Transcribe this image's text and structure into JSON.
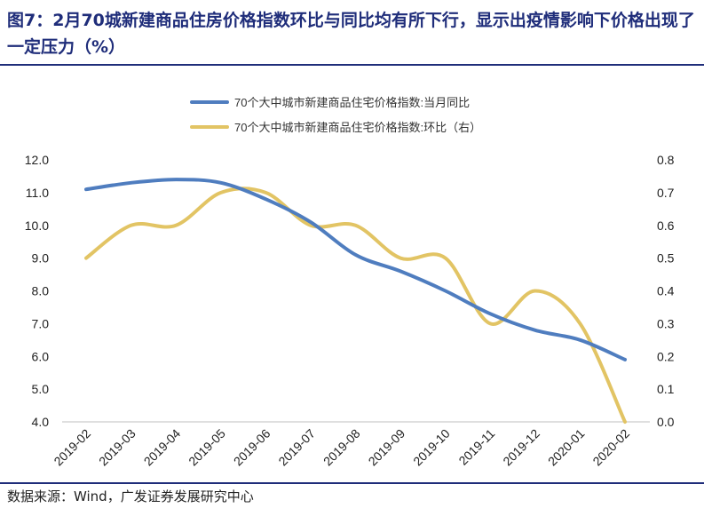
{
  "header": {
    "title": "图7：2月70城新建商品住房价格指数环比与同比均有所下行，显示出疫情影响下价格出现了一定压力（%）"
  },
  "footer": {
    "source": "数据来源：Wind，广发证券发展研究中心"
  },
  "chart_data": {
    "type": "line",
    "categories": [
      "2019-02",
      "2019-03",
      "2019-04",
      "2019-05",
      "2019-06",
      "2019-07",
      "2019-08",
      "2019-09",
      "2019-10",
      "2019-11",
      "2019-12",
      "2020-01",
      "2020-02"
    ],
    "series": [
      {
        "name": "70个大中城市新建商品住宅价格指数:当月同比",
        "axis": "left",
        "color": "#4f7dbf",
        "values": [
          11.1,
          11.3,
          11.4,
          11.3,
          10.8,
          10.1,
          9.1,
          8.6,
          8.0,
          7.3,
          6.8,
          6.5,
          5.9
        ]
      },
      {
        "name": "70个大中城市新建商品住宅价格指数:环比（右）",
        "axis": "right",
        "color": "#e2c464",
        "values": [
          0.5,
          0.6,
          0.6,
          0.7,
          0.7,
          0.6,
          0.6,
          0.5,
          0.5,
          0.3,
          0.4,
          0.3,
          0.0
        ]
      }
    ],
    "y_left": {
      "min": 4.0,
      "max": 12.0,
      "step": 1.0,
      "decimals": 1
    },
    "y_right": {
      "min": 0.0,
      "max": 0.8,
      "step": 0.1,
      "decimals": 1
    },
    "legend_position": "top-center",
    "grid": false
  }
}
